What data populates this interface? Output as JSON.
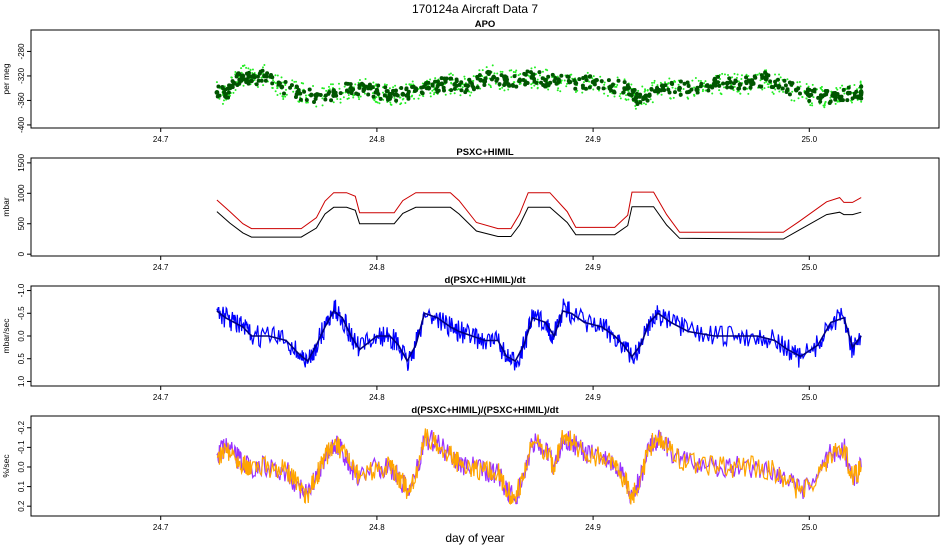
{
  "figure": {
    "title": "170124a   Aircraft Data 7",
    "xlabel": "day of year"
  },
  "chart_data": [
    {
      "type": "scatter",
      "title": "APO",
      "xlabel": "",
      "ylabel": "per meg",
      "xlim": [
        24.64,
        25.06
      ],
      "ylim": [
        -405,
        -245
      ],
      "y_reversed": false,
      "x_ticks": [
        24.7,
        24.8,
        24.9,
        25.0
      ],
      "x_tick_labels": [
        "24.7",
        "24.8",
        "24.9",
        "25.0"
      ],
      "y_ticks": [
        -400,
        -360,
        -320,
        -280
      ],
      "y_tick_labels": [
        "-400",
        "-360",
        "-320",
        "-280"
      ],
      "grid": false,
      "colors": {
        "raw": "#22ee22",
        "smoothed": "#005500"
      },
      "series": [
        {
          "style": "points",
          "color": "#22ee22",
          "x": [
            24.726,
            24.73,
            24.734,
            24.738,
            24.742,
            24.748,
            24.756,
            24.764,
            24.772,
            24.78,
            24.788,
            24.794,
            24.8,
            24.806,
            24.812,
            24.818,
            24.824,
            24.83,
            24.836,
            24.842,
            24.848,
            24.854,
            24.86,
            24.866,
            24.872,
            24.878,
            24.884,
            24.892,
            24.9,
            24.908,
            24.916,
            24.92,
            24.926,
            24.932,
            24.94,
            24.948,
            24.956,
            24.962,
            24.968,
            24.974,
            24.98,
            24.986,
            24.994,
            25.0,
            25.006,
            25.012,
            25.018,
            25.024
          ],
          "y": [
            -345,
            -352,
            -330,
            -318,
            -325,
            -318,
            -340,
            -345,
            -355,
            -350,
            -342,
            -340,
            -347,
            -352,
            -348,
            -345,
            -338,
            -335,
            -332,
            -338,
            -325,
            -320,
            -328,
            -326,
            -322,
            -325,
            -328,
            -330,
            -332,
            -336,
            -343,
            -358,
            -350,
            -338,
            -342,
            -340,
            -335,
            -330,
            -336,
            -330,
            -327,
            -335,
            -345,
            -350,
            -355,
            -352,
            -350,
            -345
          ]
        },
        {
          "style": "points-large",
          "color": "#005500",
          "x": [
            24.726,
            24.73,
            24.734,
            24.738,
            24.742,
            24.748,
            24.756,
            24.764,
            24.772,
            24.78,
            24.788,
            24.794,
            24.8,
            24.806,
            24.812,
            24.818,
            24.824,
            24.83,
            24.836,
            24.842,
            24.848,
            24.854,
            24.86,
            24.866,
            24.872,
            24.878,
            24.884,
            24.892,
            24.9,
            24.908,
            24.916,
            24.92,
            24.926,
            24.932,
            24.94,
            24.948,
            24.956,
            24.962,
            24.968,
            24.974,
            24.98,
            24.986,
            24.994,
            25.0,
            25.006,
            25.012,
            25.018,
            25.024
          ],
          "y": [
            -347,
            -350,
            -332,
            -320,
            -328,
            -320,
            -338,
            -348,
            -352,
            -352,
            -340,
            -342,
            -345,
            -350,
            -350,
            -343,
            -340,
            -333,
            -334,
            -336,
            -327,
            -322,
            -326,
            -328,
            -320,
            -327,
            -326,
            -332,
            -330,
            -338,
            -340,
            -355,
            -352,
            -336,
            -340,
            -342,
            -333,
            -332,
            -334,
            -332,
            -325,
            -337,
            -343,
            -352,
            -353,
            -354,
            -348,
            -347
          ]
        }
      ]
    },
    {
      "type": "line",
      "title": "PSXC+HIMIL",
      "xlabel": "",
      "ylabel": "mbar",
      "xlim": [
        24.64,
        25.06
      ],
      "ylim": [
        -30,
        1580
      ],
      "y_reversed": false,
      "x_ticks": [
        24.7,
        24.8,
        24.9,
        25.0
      ],
      "x_tick_labels": [
        "24.7",
        "24.8",
        "24.9",
        "25.0"
      ],
      "y_ticks": [
        0,
        500,
        1000,
        1500
      ],
      "y_tick_labels": [
        "0",
        "500",
        "1000",
        "1500"
      ],
      "grid": false,
      "series": [
        {
          "style": "line",
          "color": "#cc0000",
          "x": [
            24.726,
            24.732,
            24.738,
            24.742,
            24.765,
            24.772,
            24.776,
            24.78,
            24.786,
            24.79,
            24.792,
            24.808,
            24.812,
            24.818,
            24.822,
            24.834,
            24.838,
            24.846,
            24.856,
            24.862,
            24.866,
            24.87,
            24.876,
            24.88,
            24.888,
            24.892,
            24.91,
            24.916,
            24.918,
            24.925,
            24.928,
            24.934,
            24.94,
            24.98,
            24.988,
            24.995,
            25.008,
            25.014,
            25.016,
            25.02,
            25.024
          ],
          "y": [
            890,
            700,
            500,
            420,
            420,
            600,
            870,
            1010,
            1010,
            950,
            680,
            680,
            880,
            1010,
            1010,
            1010,
            880,
            520,
            420,
            420,
            660,
            1010,
            1010,
            1010,
            700,
            440,
            440,
            640,
            1020,
            1020,
            1020,
            650,
            360,
            360,
            360,
            530,
            860,
            930,
            850,
            850,
            930
          ]
        },
        {
          "style": "line",
          "color": "#000000",
          "x": [
            24.726,
            24.732,
            24.738,
            24.742,
            24.765,
            24.772,
            24.776,
            24.78,
            24.786,
            24.79,
            24.792,
            24.808,
            24.812,
            24.818,
            24.822,
            24.834,
            24.838,
            24.846,
            24.856,
            24.862,
            24.866,
            24.87,
            24.876,
            24.88,
            24.888,
            24.892,
            24.91,
            24.916,
            24.918,
            24.925,
            24.928,
            24.934,
            24.94,
            24.98,
            24.988,
            24.995,
            25.008,
            25.014,
            25.016,
            25.02,
            25.024
          ],
          "y": [
            700,
            510,
            350,
            280,
            280,
            430,
            660,
            770,
            770,
            720,
            500,
            500,
            670,
            770,
            770,
            770,
            660,
            380,
            290,
            290,
            480,
            770,
            770,
            770,
            520,
            320,
            320,
            470,
            780,
            780,
            780,
            480,
            260,
            250,
            250,
            390,
            650,
            690,
            650,
            650,
            690
          ]
        }
      ]
    },
    {
      "type": "line",
      "title": "d(PSXC+HIMIL)/dt",
      "xlabel": "",
      "ylabel": "mbar/sec",
      "xlim": [
        24.64,
        25.06
      ],
      "ylim": [
        1.1,
        -1.1
      ],
      "y_reversed": true,
      "x_ticks": [
        24.7,
        24.8,
        24.9,
        25.0
      ],
      "x_tick_labels": [
        "24.7",
        "24.8",
        "24.9",
        "25.0"
      ],
      "y_ticks": [
        1.0,
        0.5,
        0.0,
        -0.5,
        -1.0
      ],
      "y_tick_labels": [
        "1.0",
        "0.5",
        "0.0",
        "-0.5",
        "-1.0"
      ],
      "grid": false,
      "series": [
        {
          "style": "noisy-line",
          "color": "#0000ff",
          "x": [
            24.726,
            24.73,
            24.734,
            24.738,
            24.742,
            24.75,
            24.758,
            24.764,
            24.768,
            24.772,
            24.776,
            24.78,
            24.784,
            24.788,
            24.792,
            24.8,
            24.806,
            24.81,
            24.814,
            24.818,
            24.822,
            24.828,
            24.834,
            24.838,
            24.844,
            24.85,
            24.856,
            24.86,
            24.864,
            24.868,
            24.872,
            24.878,
            24.882,
            24.886,
            24.89,
            24.896,
            24.904,
            24.91,
            24.914,
            24.918,
            24.922,
            24.926,
            24.93,
            24.936,
            24.944,
            24.956,
            24.966,
            24.976,
            24.984,
            24.99,
            24.996,
            25.004,
            25.01,
            25.016,
            25.02,
            25.024
          ],
          "y": [
            -0.6,
            -0.4,
            -0.3,
            -0.2,
            0.0,
            0.0,
            0.1,
            0.4,
            0.6,
            0.2,
            -0.2,
            -0.6,
            -0.4,
            0.0,
            0.3,
            0.0,
            0.0,
            0.2,
            0.6,
            0.2,
            -0.5,
            -0.4,
            -0.2,
            -0.1,
            0.0,
            0.1,
            0.1,
            0.5,
            0.6,
            0.2,
            -0.4,
            -0.3,
            0.0,
            -0.6,
            -0.5,
            -0.3,
            -0.2,
            0.0,
            0.2,
            0.5,
            0.2,
            -0.3,
            -0.5,
            -0.3,
            -0.1,
            0.0,
            0.0,
            0.0,
            0.1,
            0.3,
            0.5,
            0.2,
            -0.3,
            -0.4,
            0.3,
            0.0
          ]
        },
        {
          "style": "line",
          "color": "#000080",
          "x": [
            24.726,
            24.73,
            24.734,
            24.738,
            24.742,
            24.75,
            24.758,
            24.764,
            24.768,
            24.772,
            24.776,
            24.78,
            24.784,
            24.788,
            24.792,
            24.8,
            24.806,
            24.81,
            24.814,
            24.818,
            24.822,
            24.828,
            24.834,
            24.838,
            24.844,
            24.85,
            24.856,
            24.86,
            24.864,
            24.868,
            24.872,
            24.878,
            24.882,
            24.886,
            24.89,
            24.896,
            24.904,
            24.91,
            24.914,
            24.918,
            24.922,
            24.926,
            24.93,
            24.936,
            24.944,
            24.956,
            24.966,
            24.976,
            24.984,
            24.99,
            24.996,
            25.004,
            25.01,
            25.016,
            25.02,
            25.024
          ],
          "y": [
            -0.55,
            -0.4,
            -0.3,
            -0.2,
            0.0,
            0.0,
            0.1,
            0.4,
            0.55,
            0.2,
            -0.2,
            -0.55,
            -0.4,
            0.0,
            0.3,
            0.0,
            0.0,
            0.2,
            0.55,
            0.2,
            -0.5,
            -0.4,
            -0.2,
            -0.1,
            0.0,
            0.1,
            0.1,
            0.45,
            0.55,
            0.2,
            -0.4,
            -0.3,
            0.0,
            -0.55,
            -0.5,
            -0.3,
            -0.2,
            0.0,
            0.2,
            0.45,
            0.2,
            -0.3,
            -0.5,
            -0.3,
            -0.1,
            0.0,
            0.0,
            0.0,
            0.1,
            0.3,
            0.45,
            0.2,
            -0.3,
            -0.4,
            0.25,
            0.0
          ]
        }
      ]
    },
    {
      "type": "line",
      "title": "d(PSXC+HIMIL)/(PSXC+HIMIL)/dt",
      "xlabel": "",
      "ylabel": "%/sec",
      "xlim": [
        24.64,
        25.06
      ],
      "ylim": [
        0.25,
        -0.26
      ],
      "y_reversed": true,
      "x_ticks": [
        24.7,
        24.8,
        24.9,
        25.0
      ],
      "x_tick_labels": [
        "24.7",
        "24.8",
        "24.9",
        "25.0"
      ],
      "y_ticks": [
        0.2,
        0.1,
        0.0,
        -0.1,
        -0.2
      ],
      "y_tick_labels": [
        "0.2",
        "0.1",
        "0.0",
        "-0.1",
        "-0.2"
      ],
      "grid": false,
      "series": [
        {
          "style": "noisy-line",
          "color": "#9933ff",
          "x": [
            24.726,
            24.73,
            24.734,
            24.738,
            24.742,
            24.75,
            24.758,
            24.764,
            24.768,
            24.772,
            24.776,
            24.78,
            24.784,
            24.788,
            24.792,
            24.8,
            24.806,
            24.81,
            24.814,
            24.818,
            24.822,
            24.828,
            24.834,
            24.838,
            24.844,
            24.85,
            24.856,
            24.86,
            24.864,
            24.868,
            24.872,
            24.878,
            24.882,
            24.886,
            24.89,
            24.896,
            24.904,
            24.91,
            24.914,
            24.918,
            24.922,
            24.926,
            24.93,
            24.936,
            24.944,
            24.956,
            24.966,
            24.976,
            24.984,
            24.99,
            24.996,
            25.004,
            25.01,
            25.016,
            25.02,
            25.024
          ],
          "y": [
            -0.06,
            -0.1,
            -0.06,
            -0.02,
            0.0,
            0.0,
            0.02,
            0.1,
            0.15,
            0.05,
            -0.05,
            -0.12,
            -0.08,
            0.0,
            0.06,
            0.0,
            0.0,
            0.05,
            0.12,
            0.04,
            -0.15,
            -0.12,
            -0.06,
            -0.02,
            0.0,
            0.02,
            0.03,
            0.12,
            0.16,
            0.05,
            -0.13,
            -0.09,
            0.0,
            -0.15,
            -0.13,
            -0.07,
            -0.05,
            0.0,
            0.05,
            0.16,
            0.05,
            -0.1,
            -0.15,
            -0.08,
            -0.02,
            0.0,
            0.0,
            0.0,
            0.02,
            0.07,
            0.13,
            0.05,
            -0.07,
            -0.1,
            0.06,
            0.0
          ]
        },
        {
          "style": "noisy-line",
          "color": "#ffa500",
          "x": [
            24.726,
            24.73,
            24.734,
            24.738,
            24.742,
            24.75,
            24.758,
            24.764,
            24.768,
            24.772,
            24.776,
            24.78,
            24.784,
            24.788,
            24.792,
            24.8,
            24.806,
            24.81,
            24.814,
            24.818,
            24.822,
            24.828,
            24.834,
            24.838,
            24.844,
            24.85,
            24.856,
            24.86,
            24.864,
            24.868,
            24.872,
            24.878,
            24.882,
            24.886,
            24.89,
            24.896,
            24.904,
            24.91,
            24.914,
            24.918,
            24.922,
            24.926,
            24.93,
            24.936,
            24.944,
            24.956,
            24.966,
            24.976,
            24.984,
            24.99,
            24.996,
            25.004,
            25.01,
            25.016,
            25.02,
            25.024
          ],
          "y": [
            -0.05,
            -0.1,
            -0.06,
            -0.02,
            0.0,
            0.0,
            0.02,
            0.1,
            0.15,
            0.05,
            -0.05,
            -0.12,
            -0.08,
            0.0,
            0.06,
            0.0,
            0.0,
            0.05,
            0.12,
            0.04,
            -0.15,
            -0.12,
            -0.06,
            -0.02,
            0.0,
            0.02,
            0.03,
            0.12,
            0.15,
            0.05,
            -0.13,
            -0.09,
            0.0,
            -0.15,
            -0.13,
            -0.07,
            -0.05,
            0.0,
            0.05,
            0.15,
            0.05,
            -0.1,
            -0.15,
            -0.08,
            -0.02,
            0.0,
            0.0,
            0.0,
            0.02,
            0.07,
            0.13,
            0.05,
            -0.07,
            -0.1,
            0.06,
            0.0
          ]
        }
      ]
    }
  ]
}
